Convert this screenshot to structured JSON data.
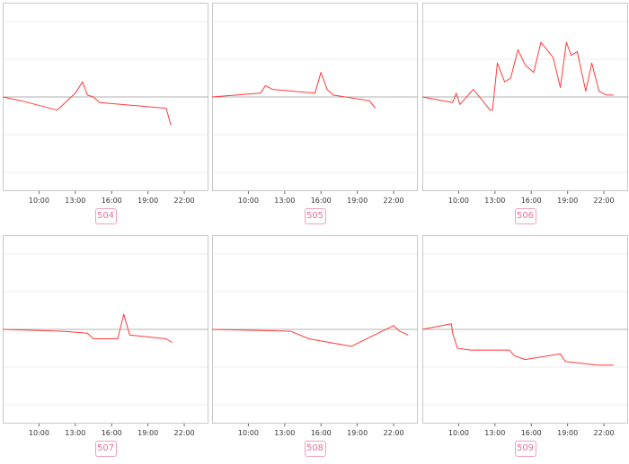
{
  "colors": {
    "line": "#ff3b3b",
    "frame": "#c8c8c8",
    "grid": "#eeeeee",
    "zero": "#b0b0b0",
    "badge_text": "#e8709a",
    "badge_border": "#f0a0b8"
  },
  "chart_data": [
    {
      "type": "line",
      "label": "504",
      "xlim": [
        7,
        24
      ],
      "ylim": [
        -5,
        5
      ],
      "xticks": [
        "10:00",
        "13:00",
        "16:00",
        "19:00",
        "22:00"
      ],
      "xtick_values": [
        10,
        13,
        16,
        19,
        22
      ],
      "x": [
        7,
        8.5,
        11.5,
        13.0,
        13.6,
        14.0,
        14.5,
        15.0,
        20.5,
        20.9
      ],
      "y": [
        0.0,
        -0.2,
        -0.7,
        0.2,
        0.8,
        0.1,
        0.0,
        -0.3,
        -0.6,
        -1.5
      ]
    },
    {
      "type": "line",
      "label": "505",
      "xlim": [
        7,
        24
      ],
      "ylim": [
        -5,
        5
      ],
      "xticks": [
        "10:00",
        "13:00",
        "16:00",
        "19:00",
        "22:00"
      ],
      "xtick_values": [
        10,
        13,
        16,
        19,
        22
      ],
      "x": [
        7,
        11.0,
        11.4,
        12.0,
        15.5,
        16.0,
        16.5,
        17.0,
        20.0,
        20.5
      ],
      "y": [
        0.0,
        0.2,
        0.6,
        0.4,
        0.2,
        1.3,
        0.4,
        0.1,
        -0.2,
        -0.6
      ]
    },
    {
      "type": "line",
      "label": "506",
      "xlim": [
        7,
        24
      ],
      "ylim": [
        -5,
        5
      ],
      "xticks": [
        "10:00",
        "13:00",
        "16:00",
        "19:00",
        "22:00"
      ],
      "xtick_values": [
        10,
        13,
        16,
        19,
        22
      ],
      "x": [
        7,
        9.5,
        9.8,
        10.1,
        10.8,
        11.2,
        11.6,
        12.6,
        12.8,
        13.2,
        13.8,
        14.3,
        14.9,
        15.5,
        16.2,
        16.8,
        17.8,
        18.4,
        18.9,
        19.3,
        19.8,
        20.5,
        21.0,
        21.6,
        22.2,
        22.8
      ],
      "y": [
        0.0,
        -0.3,
        0.2,
        -0.4,
        0.1,
        0.4,
        0.1,
        -0.7,
        -0.7,
        1.8,
        0.8,
        1.0,
        2.5,
        1.7,
        1.3,
        2.9,
        2.1,
        0.5,
        2.9,
        2.2,
        2.4,
        0.3,
        1.8,
        0.3,
        0.1,
        0.1
      ]
    },
    {
      "type": "line",
      "label": "507",
      "xlim": [
        7,
        24
      ],
      "ylim": [
        -5,
        5
      ],
      "xticks": [
        "10:00",
        "13:00",
        "16:00",
        "19:00",
        "22:00"
      ],
      "xtick_values": [
        10,
        13,
        16,
        19,
        22
      ],
      "x": [
        7,
        12.0,
        14.0,
        14.5,
        16.5,
        17.0,
        17.5,
        20.5,
        21.0
      ],
      "y": [
        0.0,
        -0.1,
        -0.2,
        -0.5,
        -0.5,
        0.8,
        -0.3,
        -0.5,
        -0.7
      ]
    },
    {
      "type": "line",
      "label": "508",
      "xlim": [
        7,
        24
      ],
      "ylim": [
        -5,
        5
      ],
      "xticks": [
        "10:00",
        "13:00",
        "16:00",
        "19:00",
        "22:00"
      ],
      "xtick_values": [
        10,
        13,
        16,
        19,
        22
      ],
      "x": [
        7,
        13.5,
        15.0,
        18.5,
        22.0,
        22.5,
        23.2
      ],
      "y": [
        0.0,
        -0.1,
        -0.5,
        -0.9,
        0.2,
        -0.1,
        -0.3
      ]
    },
    {
      "type": "line",
      "label": "509",
      "xlim": [
        7,
        24
      ],
      "ylim": [
        -5,
        5
      ],
      "xticks": [
        "10:00",
        "13:00",
        "16:00",
        "19:00",
        "22:00"
      ],
      "xtick_values": [
        10,
        13,
        16,
        19,
        22
      ],
      "x": [
        7,
        9.4,
        9.5,
        9.9,
        11.0,
        14.2,
        14.6,
        15.5,
        18.4,
        18.8,
        21.5,
        22.8
      ],
      "y": [
        0.0,
        0.3,
        -0.2,
        -1.0,
        -1.1,
        -1.1,
        -1.4,
        -1.6,
        -1.3,
        -1.7,
        -1.9,
        -1.9
      ]
    }
  ]
}
